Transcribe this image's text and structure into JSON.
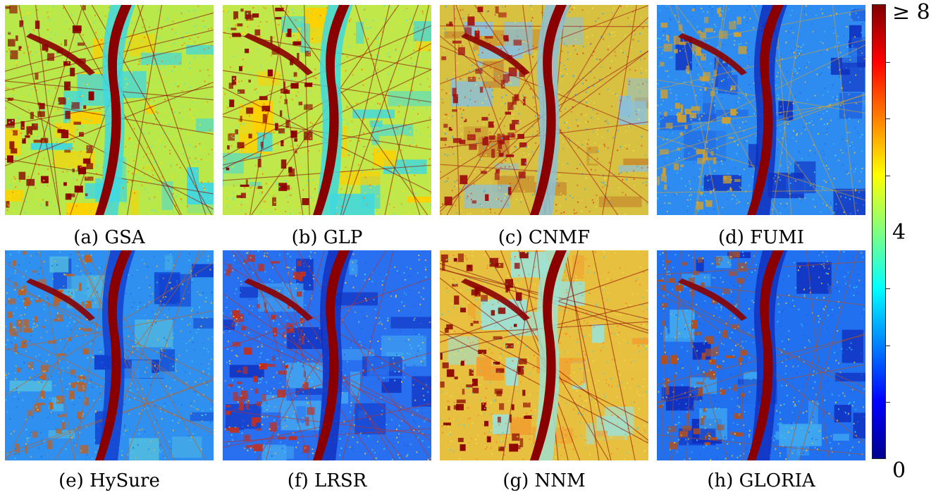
{
  "panels": [
    {
      "id": "a",
      "caption": "(a) GSA"
    },
    {
      "id": "b",
      "caption": "(b) GLP"
    },
    {
      "id": "c",
      "caption": "(c) CNMF"
    },
    {
      "id": "d",
      "caption": "(d) FUMI"
    },
    {
      "id": "e",
      "caption": "(e) HySure"
    },
    {
      "id": "f",
      "caption": "(f) LRSR"
    },
    {
      "id": "g",
      "caption": "(g) NNM"
    },
    {
      "id": "h",
      "caption": "(h) GLORIA"
    }
  ],
  "colorbar": {
    "max_label": "≥ 8",
    "mid_label": "4",
    "min_label": "0",
    "colormap": [
      "#00008f",
      "#0000ff",
      "#0080ff",
      "#00ffff",
      "#80ff80",
      "#ffff00",
      "#ff8000",
      "#ff0000",
      "#800000"
    ]
  }
}
